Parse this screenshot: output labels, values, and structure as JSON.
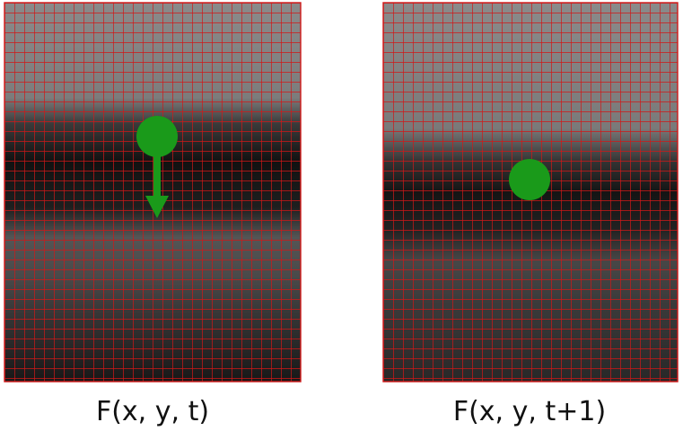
{
  "panels": [
    {
      "label": "F(x, y, t)"
    },
    {
      "label": "F(x, y, t+1)"
    }
  ]
}
